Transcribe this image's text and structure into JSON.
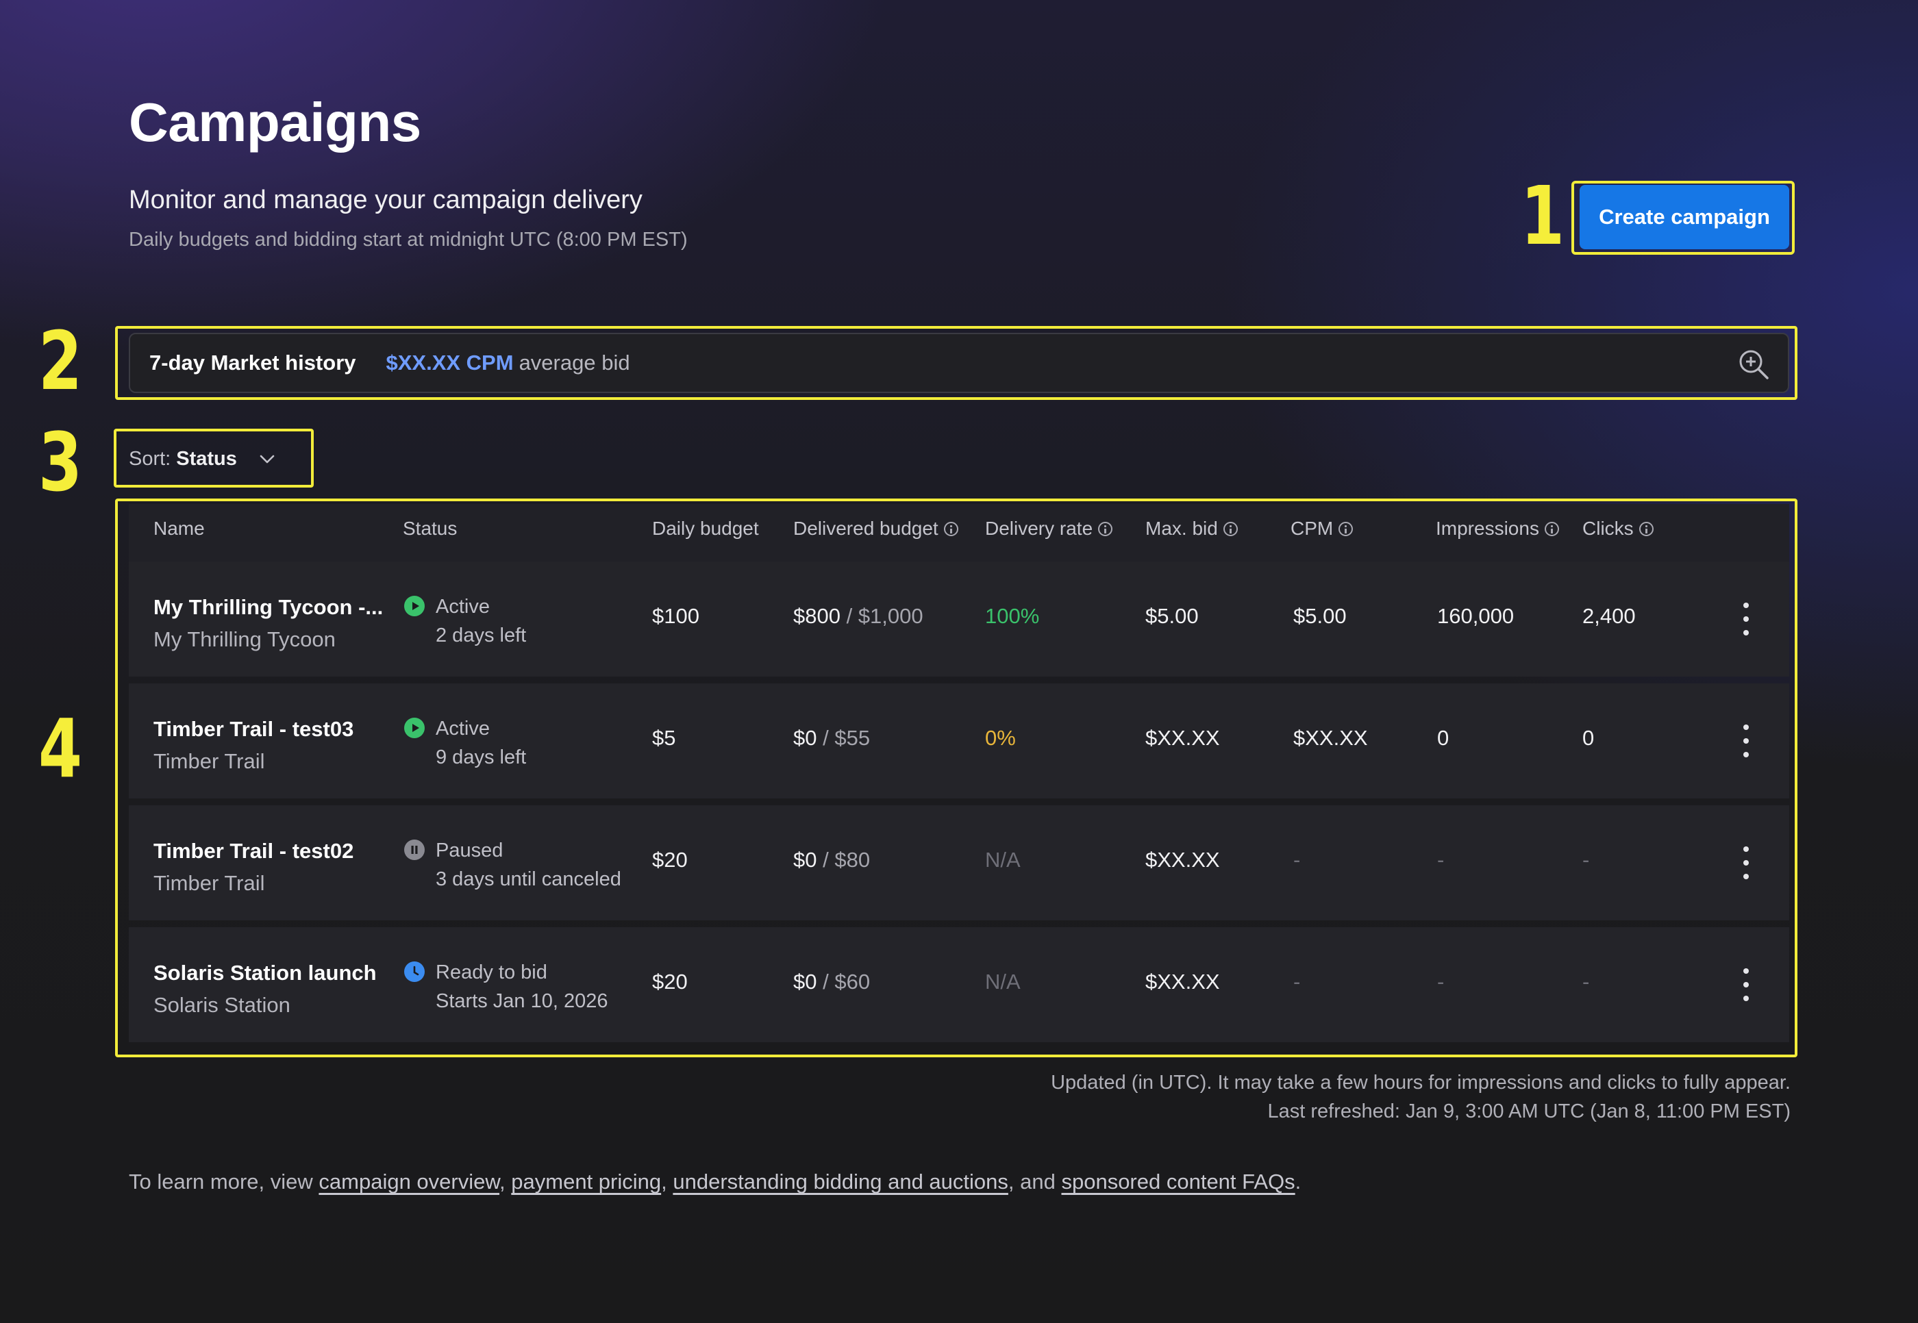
{
  "header": {
    "title": "Campaigns",
    "subtitle": "Monitor and manage your campaign delivery",
    "note": "Daily budgets and bidding start at midnight UTC (8:00 PM EST)",
    "create_button": "Create campaign"
  },
  "annotations": [
    "1",
    "2",
    "3",
    "4"
  ],
  "market": {
    "label": "7-day Market history",
    "value": "$XX.XX CPM",
    "suffix": "average bid",
    "icon": "zoom-in-icon"
  },
  "sort": {
    "label": "Sort:",
    "value": "Status",
    "icon": "chevron-down-icon"
  },
  "table": {
    "columns": [
      "Name",
      "Status",
      "Daily budget",
      "Delivered budget",
      "Delivery rate",
      "Max. bid",
      "CPM",
      "Impressions",
      "Clicks"
    ],
    "rows": [
      {
        "name": "My Thrilling Tycoon -...",
        "game": "My Thrilling Tycoon",
        "status": "Active",
        "status_detail": "2 days left",
        "status_icon": "play-icon",
        "status_color": "#3ac26b",
        "daily_budget": "$100",
        "delivered": "$800",
        "budget_total": "/ $1,000",
        "delivery_rate": "100%",
        "rate_color": "#3ac26b",
        "max_bid": "$5.00",
        "cpm": "$5.00",
        "impressions": "160,000",
        "clicks": "2,400"
      },
      {
        "name": "Timber Trail - test03",
        "game": "Timber Trail",
        "status": "Active",
        "status_detail": "9 days left",
        "status_icon": "play-icon",
        "status_color": "#3ac26b",
        "daily_budget": "$5",
        "delivered": "$0",
        "budget_total": "/ $55",
        "delivery_rate": "0%",
        "rate_color": "#e8b53a",
        "max_bid": "$XX.XX",
        "cpm": "$XX.XX",
        "impressions": "0",
        "clicks": "0"
      },
      {
        "name": "Timber Trail - test02",
        "game": "Timber Trail",
        "status": "Paused",
        "status_detail": "3 days until canceled",
        "status_icon": "pause-icon",
        "status_color": "#8a8a92",
        "daily_budget": "$20",
        "delivered": "$0",
        "budget_total": "/ $80",
        "delivery_rate": "N/A",
        "rate_color": "#6f6f78",
        "max_bid": "$XX.XX",
        "cpm": "-",
        "impressions": "-",
        "clicks": "-"
      },
      {
        "name": "Solaris Station launch",
        "game": "Solaris Station",
        "status": "Ready to bid",
        "status_detail": "Starts Jan 10, 2026",
        "status_icon": "clock-icon",
        "status_color": "#3b8cf0",
        "daily_budget": "$20",
        "delivered": "$0",
        "budget_total": "/ $60",
        "delivery_rate": "N/A",
        "rate_color": "#6f6f78",
        "max_bid": "$XX.XX",
        "cpm": "-",
        "impressions": "-",
        "clicks": "-"
      }
    ]
  },
  "footer": {
    "updated": "Updated (in UTC). It may take a few hours for impressions and clicks to fully appear.",
    "refreshed": "Last refreshed: Jan 9, 3:00 AM UTC (Jan 8, 11:00 PM EST)",
    "learn_prefix": "To learn more, view",
    "links": [
      "campaign overview",
      "payment pricing",
      "understanding bidding and auctions",
      "sponsored content FAQs"
    ],
    "sep1": ",",
    "sep2": ",",
    "sep3": ", and",
    "end": "."
  }
}
